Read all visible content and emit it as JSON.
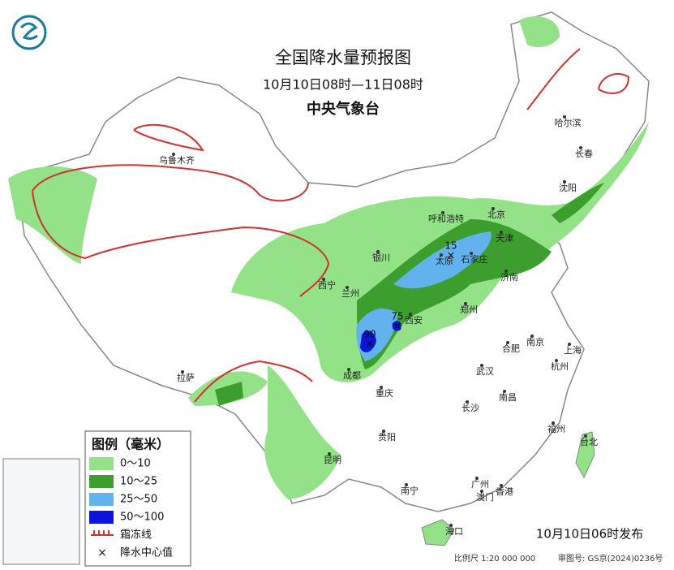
{
  "header": {
    "title": "全国降水量预报图",
    "subtitle": "10月10日08时—11日08时",
    "issuer": "中央气象台"
  },
  "legend": {
    "title": "图例（毫米）",
    "items": [
      {
        "label": "0～10",
        "color": "#93e287"
      },
      {
        "label": "10～25",
        "color": "#3c9e2c"
      },
      {
        "label": "25～50",
        "color": "#62b2ee"
      },
      {
        "label": "50～100",
        "color": "#0a14dc"
      }
    ],
    "frost": {
      "label": "霜冻线",
      "color": "#d43030"
    },
    "center": "降水中心值"
  },
  "cities": [
    "乌鲁木齐",
    "哈尔滨",
    "长春",
    "沈阳",
    "呼和浩特",
    "北京",
    "天津",
    "银川",
    "太原",
    "石家庄",
    "济南",
    "西宁",
    "兰州",
    "郑州",
    "西安",
    "合肥",
    "南京",
    "上海",
    "成都",
    "武汉",
    "杭州",
    "拉萨",
    "重庆",
    "南昌",
    "长沙",
    "贵阳",
    "福州",
    "台北",
    "昆明",
    "南宁",
    "广州",
    "澳门",
    "香港",
    "海口"
  ],
  "centers": [
    15,
    75,
    90
  ],
  "footer": {
    "issued": "10月10日06时发布",
    "scale": "比例尺 1:20 000 000",
    "approval": "审图号: GS京(2024)0236号"
  }
}
